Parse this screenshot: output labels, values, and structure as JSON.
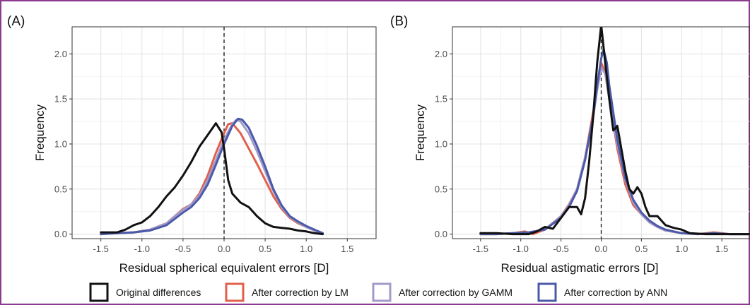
{
  "colors": {
    "original": "#111111",
    "lm": "#e0604c",
    "gamm": "#a39ac9",
    "ann": "#4a5aa8",
    "frame": "#8b3a8f",
    "grid": "#e6e6e6"
  },
  "legend": {
    "placement": "bottom",
    "items": [
      {
        "key": "original",
        "label": "Original differences"
      },
      {
        "key": "lm",
        "label": "After correction by LM"
      },
      {
        "key": "gamm",
        "label": "After correction by GAMM"
      },
      {
        "key": "ann",
        "label": "After correction by ANN"
      }
    ]
  },
  "chart_data": [
    {
      "type": "line",
      "panel_label": "(A)",
      "xlabel": "Residual spherical equivalent errors [D]",
      "ylabel": "Frequency",
      "xlim": [
        -1.85,
        1.85
      ],
      "ylim": [
        -0.05,
        2.3
      ],
      "x_ticks": [
        -1.5,
        -1.0,
        -0.5,
        0.0,
        0.5,
        1.0,
        1.5
      ],
      "x_tick_labels": [
        "-1.5",
        "-1.0",
        "-0.5",
        "0.0",
        "0.5",
        "1.0",
        "1.5"
      ],
      "y_ticks": [
        0.0,
        0.5,
        1.0,
        1.5,
        2.0
      ],
      "y_tick_labels": [
        "0.0",
        "0.5",
        "1.0",
        "1.5",
        "2.0"
      ],
      "reference_line_x": 0,
      "series": [
        {
          "key": "original",
          "name": "Original differences",
          "points": [
            [
              -1.5,
              0.02
            ],
            [
              -1.4,
              0.02
            ],
            [
              -1.3,
              0.02
            ],
            [
              -1.2,
              0.05
            ],
            [
              -1.1,
              0.1
            ],
            [
              -1.0,
              0.13
            ],
            [
              -0.9,
              0.2
            ],
            [
              -0.8,
              0.3
            ],
            [
              -0.7,
              0.42
            ],
            [
              -0.6,
              0.52
            ],
            [
              -0.5,
              0.65
            ],
            [
              -0.4,
              0.8
            ],
            [
              -0.3,
              0.97
            ],
            [
              -0.2,
              1.1
            ],
            [
              -0.1,
              1.23
            ],
            [
              -0.03,
              1.13
            ],
            [
              0.0,
              0.95
            ],
            [
              0.05,
              0.6
            ],
            [
              0.1,
              0.45
            ],
            [
              0.2,
              0.35
            ],
            [
              0.3,
              0.3
            ],
            [
              0.4,
              0.2
            ],
            [
              0.5,
              0.12
            ],
            [
              0.6,
              0.08
            ],
            [
              0.7,
              0.07
            ],
            [
              0.8,
              0.06
            ],
            [
              0.9,
              0.04
            ],
            [
              1.0,
              0.03
            ],
            [
              1.1,
              0.01
            ],
            [
              1.2,
              0.0
            ]
          ]
        },
        {
          "key": "lm",
          "name": "After correction by LM",
          "points": [
            [
              -1.5,
              0.0
            ],
            [
              -1.3,
              0.01
            ],
            [
              -1.1,
              0.02
            ],
            [
              -0.9,
              0.05
            ],
            [
              -0.7,
              0.12
            ],
            [
              -0.6,
              0.2
            ],
            [
              -0.5,
              0.28
            ],
            [
              -0.4,
              0.33
            ],
            [
              -0.3,
              0.45
            ],
            [
              -0.2,
              0.65
            ],
            [
              -0.1,
              0.9
            ],
            [
              0.0,
              1.12
            ],
            [
              0.05,
              1.22
            ],
            [
              0.1,
              1.23
            ],
            [
              0.2,
              1.12
            ],
            [
              0.3,
              0.95
            ],
            [
              0.4,
              0.78
            ],
            [
              0.5,
              0.6
            ],
            [
              0.6,
              0.42
            ],
            [
              0.7,
              0.28
            ],
            [
              0.8,
              0.18
            ],
            [
              0.9,
              0.12
            ],
            [
              1.0,
              0.08
            ],
            [
              1.1,
              0.04
            ],
            [
              1.2,
              0.01
            ]
          ]
        },
        {
          "key": "gamm",
          "name": "After correction by GAMM",
          "points": [
            [
              -1.5,
              0.0
            ],
            [
              -1.3,
              0.01
            ],
            [
              -1.1,
              0.02
            ],
            [
              -0.9,
              0.05
            ],
            [
              -0.7,
              0.12
            ],
            [
              -0.6,
              0.2
            ],
            [
              -0.5,
              0.27
            ],
            [
              -0.4,
              0.33
            ],
            [
              -0.3,
              0.43
            ],
            [
              -0.2,
              0.6
            ],
            [
              -0.1,
              0.82
            ],
            [
              0.0,
              1.05
            ],
            [
              0.1,
              1.22
            ],
            [
              0.15,
              1.27
            ],
            [
              0.2,
              1.25
            ],
            [
              0.3,
              1.12
            ],
            [
              0.4,
              0.92
            ],
            [
              0.5,
              0.7
            ],
            [
              0.6,
              0.48
            ],
            [
              0.7,
              0.3
            ],
            [
              0.8,
              0.19
            ],
            [
              0.9,
              0.13
            ],
            [
              1.0,
              0.08
            ],
            [
              1.1,
              0.04
            ],
            [
              1.2,
              0.01
            ]
          ]
        },
        {
          "key": "ann",
          "name": "After correction by ANN",
          "points": [
            [
              -1.5,
              0.0
            ],
            [
              -1.3,
              0.01
            ],
            [
              -1.1,
              0.02
            ],
            [
              -0.9,
              0.04
            ],
            [
              -0.7,
              0.1
            ],
            [
              -0.6,
              0.17
            ],
            [
              -0.5,
              0.24
            ],
            [
              -0.4,
              0.3
            ],
            [
              -0.3,
              0.4
            ],
            [
              -0.2,
              0.55
            ],
            [
              -0.1,
              0.77
            ],
            [
              0.0,
              1.0
            ],
            [
              0.1,
              1.2
            ],
            [
              0.17,
              1.28
            ],
            [
              0.22,
              1.27
            ],
            [
              0.3,
              1.18
            ],
            [
              0.4,
              0.98
            ],
            [
              0.5,
              0.75
            ],
            [
              0.6,
              0.5
            ],
            [
              0.7,
              0.32
            ],
            [
              0.8,
              0.2
            ],
            [
              0.9,
              0.14
            ],
            [
              1.0,
              0.09
            ],
            [
              1.1,
              0.05
            ],
            [
              1.2,
              0.01
            ]
          ]
        }
      ]
    },
    {
      "type": "line",
      "panel_label": "(B)",
      "xlabel": "Residual astigmatic errors [D]",
      "ylabel": "Frequency",
      "xlim": [
        -1.85,
        1.85
      ],
      "ylim": [
        -0.05,
        2.3
      ],
      "x_ticks": [
        -1.5,
        -1.0,
        -0.5,
        0.0,
        0.5,
        1.0,
        1.5
      ],
      "x_tick_labels": [
        "-1.5",
        "-1.0",
        "-0.5",
        "0.0",
        "0.5",
        "1.0",
        "1.5"
      ],
      "y_ticks": [
        0.0,
        0.5,
        1.0,
        1.5,
        2.0
      ],
      "y_tick_labels": [
        "0.0",
        "0.5",
        "1.0",
        "1.5",
        "2.0"
      ],
      "reference_line_x": 0,
      "series": [
        {
          "key": "original",
          "name": "Original differences",
          "points": [
            [
              -1.5,
              0.01
            ],
            [
              -1.3,
              0.01
            ],
            [
              -1.1,
              0.0
            ],
            [
              -0.9,
              0.0
            ],
            [
              -0.8,
              0.03
            ],
            [
              -0.7,
              0.08
            ],
            [
              -0.6,
              0.06
            ],
            [
              -0.5,
              0.18
            ],
            [
              -0.4,
              0.3
            ],
            [
              -0.3,
              0.3
            ],
            [
              -0.25,
              0.22
            ],
            [
              -0.2,
              0.4
            ],
            [
              -0.15,
              0.8
            ],
            [
              -0.1,
              1.3
            ],
            [
              -0.05,
              1.9
            ],
            [
              0.0,
              2.32
            ],
            [
              0.05,
              1.9
            ],
            [
              0.1,
              1.5
            ],
            [
              0.15,
              1.15
            ],
            [
              0.2,
              1.2
            ],
            [
              0.25,
              0.95
            ],
            [
              0.3,
              0.7
            ],
            [
              0.35,
              0.5
            ],
            [
              0.4,
              0.45
            ],
            [
              0.45,
              0.52
            ],
            [
              0.5,
              0.45
            ],
            [
              0.55,
              0.3
            ],
            [
              0.6,
              0.2
            ],
            [
              0.7,
              0.2
            ],
            [
              0.8,
              0.1
            ],
            [
              0.9,
              0.07
            ],
            [
              1.0,
              0.05
            ],
            [
              1.1,
              0.01
            ],
            [
              1.3,
              0.0
            ],
            [
              1.5,
              0.0
            ],
            [
              1.85,
              0.0
            ]
          ]
        },
        {
          "key": "lm",
          "name": "After correction by LM",
          "points": [
            [
              -1.5,
              0.0
            ],
            [
              -1.3,
              0.0
            ],
            [
              -1.1,
              0.01
            ],
            [
              -0.95,
              0.03
            ],
            [
              -0.85,
              0.0
            ],
            [
              -0.7,
              0.05
            ],
            [
              -0.5,
              0.2
            ],
            [
              -0.4,
              0.33
            ],
            [
              -0.3,
              0.5
            ],
            [
              -0.2,
              0.85
            ],
            [
              -0.1,
              1.35
            ],
            [
              -0.05,
              1.65
            ],
            [
              0.0,
              1.9
            ],
            [
              0.05,
              1.8
            ],
            [
              0.1,
              1.5
            ],
            [
              0.2,
              0.95
            ],
            [
              0.3,
              0.55
            ],
            [
              0.4,
              0.32
            ],
            [
              0.5,
              0.22
            ],
            [
              0.6,
              0.13
            ],
            [
              0.7,
              0.08
            ],
            [
              0.8,
              0.04
            ],
            [
              1.0,
              0.01
            ],
            [
              1.2,
              0.0
            ],
            [
              1.4,
              0.02
            ],
            [
              1.6,
              0.0
            ],
            [
              1.85,
              0.0
            ]
          ]
        },
        {
          "key": "gamm",
          "name": "After correction by GAMM",
          "points": [
            [
              -1.5,
              0.0
            ],
            [
              -1.3,
              0.0
            ],
            [
              -1.1,
              0.01
            ],
            [
              -0.9,
              0.02
            ],
            [
              -0.7,
              0.05
            ],
            [
              -0.5,
              0.2
            ],
            [
              -0.4,
              0.32
            ],
            [
              -0.3,
              0.5
            ],
            [
              -0.2,
              0.85
            ],
            [
              -0.1,
              1.3
            ],
            [
              -0.05,
              1.6
            ],
            [
              0.0,
              1.85
            ],
            [
              0.05,
              1.78
            ],
            [
              0.1,
              1.5
            ],
            [
              0.2,
              1.0
            ],
            [
              0.3,
              0.6
            ],
            [
              0.4,
              0.35
            ],
            [
              0.5,
              0.22
            ],
            [
              0.6,
              0.13
            ],
            [
              0.7,
              0.08
            ],
            [
              0.8,
              0.04
            ],
            [
              1.0,
              0.01
            ],
            [
              1.2,
              0.0
            ],
            [
              1.4,
              0.01
            ],
            [
              1.6,
              0.0
            ],
            [
              1.85,
              0.0
            ]
          ]
        },
        {
          "key": "ann",
          "name": "After correction by ANN",
          "points": [
            [
              -1.5,
              0.0
            ],
            [
              -1.3,
              0.0
            ],
            [
              -1.1,
              0.01
            ],
            [
              -0.9,
              0.02
            ],
            [
              -0.7,
              0.05
            ],
            [
              -0.5,
              0.18
            ],
            [
              -0.4,
              0.3
            ],
            [
              -0.3,
              0.48
            ],
            [
              -0.2,
              0.82
            ],
            [
              -0.1,
              1.3
            ],
            [
              -0.05,
              1.65
            ],
            [
              0.0,
              1.95
            ],
            [
              0.03,
              2.05
            ],
            [
              0.07,
              1.9
            ],
            [
              0.1,
              1.65
            ],
            [
              0.2,
              1.05
            ],
            [
              0.3,
              0.62
            ],
            [
              0.4,
              0.38
            ],
            [
              0.5,
              0.24
            ],
            [
              0.6,
              0.15
            ],
            [
              0.7,
              0.09
            ],
            [
              0.8,
              0.05
            ],
            [
              1.0,
              0.01
            ],
            [
              1.2,
              0.0
            ],
            [
              1.4,
              0.01
            ],
            [
              1.6,
              0.0
            ],
            [
              1.85,
              0.0
            ]
          ]
        }
      ]
    }
  ]
}
